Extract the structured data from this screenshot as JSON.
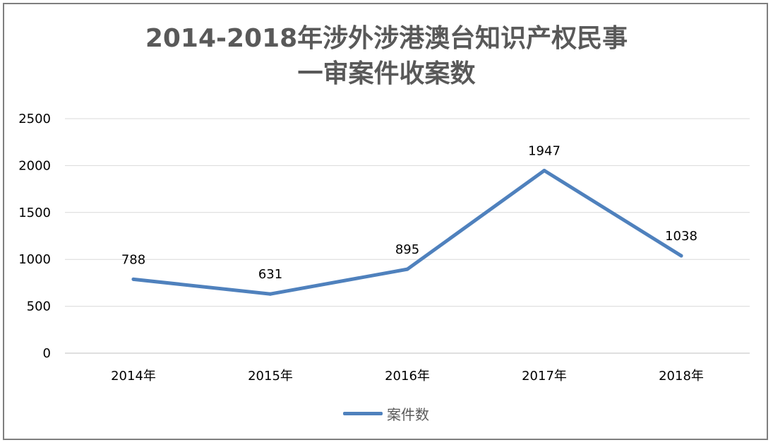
{
  "chart_data": {
    "type": "line",
    "title_lines": [
      "2014-2018年涉外涉港澳台知识产权民事",
      "一审案件收案数"
    ],
    "categories": [
      "2014年",
      "2015年",
      "2016年",
      "2017年",
      "2018年"
    ],
    "series": [
      {
        "name": "案件数",
        "values": [
          788,
          631,
          895,
          1947,
          1038
        ],
        "color": "#4f81bd"
      }
    ],
    "ylim": [
      0,
      2500
    ],
    "yticks": [
      0,
      500,
      1000,
      1500,
      2000,
      2500
    ],
    "grid": true,
    "legend_position": "bottom",
    "data_labels": true
  }
}
